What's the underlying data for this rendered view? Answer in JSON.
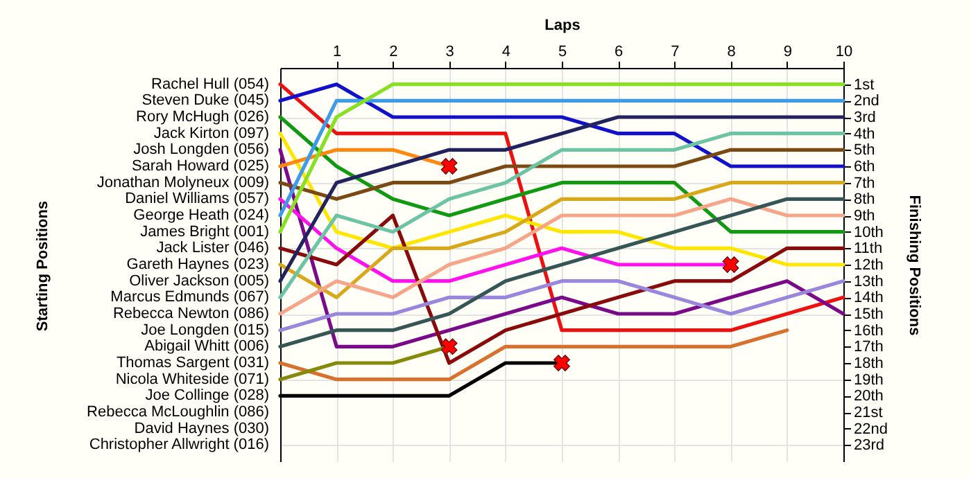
{
  "chart_data": {
    "type": "line",
    "xlabel": "Laps",
    "ylabel": "Finishing Positions",
    "annotations": [
      "Starting Positions",
      "Rebecca McLoughlin (086)",
      "David Haynes (030)",
      "Christopher Allwright (016)"
    ],
    "legend": "left",
    "x": [
      0,
      1,
      2,
      3,
      4,
      5,
      6,
      7,
      8,
      9,
      10
    ],
    "xlim": [
      0,
      10
    ],
    "xticks": [
      1,
      2,
      3,
      4,
      5,
      6,
      7,
      8,
      9,
      10
    ],
    "ylim": [
      24,
      0
    ],
    "yticks": [
      {
        "value": 1,
        "label": "1st"
      },
      {
        "value": 2,
        "label": "2nd"
      },
      {
        "value": 3,
        "label": "3rd"
      },
      {
        "value": 4,
        "label": "4th"
      },
      {
        "value": 5,
        "label": "5th"
      },
      {
        "value": 6,
        "label": "6th"
      },
      {
        "value": 7,
        "label": "7th"
      },
      {
        "value": 8,
        "label": "8th"
      },
      {
        "value": 9,
        "label": "9th"
      },
      {
        "value": 10,
        "label": "10th"
      },
      {
        "value": 11,
        "label": "11th"
      },
      {
        "value": 12,
        "label": "12th"
      },
      {
        "value": 13,
        "label": "13th"
      },
      {
        "value": 14,
        "label": "14th"
      },
      {
        "value": 15,
        "label": "15th"
      },
      {
        "value": 16,
        "label": "16th"
      },
      {
        "value": 17,
        "label": "17th"
      },
      {
        "value": 18,
        "label": "18th"
      },
      {
        "value": 19,
        "label": "19th"
      },
      {
        "value": 20,
        "label": "20th"
      },
      {
        "value": 21,
        "label": "21st"
      },
      {
        "value": 22,
        "label": "22nd"
      },
      {
        "value": 23,
        "label": "23rd"
      }
    ],
    "grid": true,
    "series": [
      {
        "name": "Rachel Hull (054)",
        "color": "#ee1111",
        "values": [
          1,
          4,
          4,
          4,
          4,
          16,
          16,
          16,
          16,
          15,
          14
        ]
      },
      {
        "name": "Steven Duke (045)",
        "color": "#1111cc",
        "values": [
          2,
          1,
          3,
          3,
          3,
          3,
          4,
          4,
          6,
          6,
          6
        ]
      },
      {
        "name": "Rory McHugh (026)",
        "color": "#119911",
        "values": [
          3,
          6,
          8,
          9,
          8,
          7,
          7,
          7,
          10,
          10,
          10
        ]
      },
      {
        "name": "Jack Kirton (097)",
        "color": "#ffe600",
        "values": [
          4,
          10,
          11,
          10,
          9,
          10,
          10,
          11,
          11,
          12,
          12
        ]
      },
      {
        "name": "Josh Longden (056)",
        "color": "#7a0a8a",
        "values": [
          5,
          17,
          17,
          16,
          15,
          14,
          15,
          15,
          14,
          13,
          15
        ]
      },
      {
        "name": "Sarah Howard (025)",
        "color": "#ff8811",
        "values": [
          6,
          5,
          5,
          6,
          null,
          null,
          null,
          null,
          null,
          null,
          null
        ]
      },
      {
        "name": "Jonathan Molyneux (009)",
        "color": "#7b4a14",
        "values": [
          7,
          8,
          7,
          7,
          6,
          6,
          6,
          6,
          5,
          5,
          5
        ]
      },
      {
        "name": "Daniel Williams (057)",
        "color": "#ff11ee",
        "values": [
          8,
          11,
          13,
          13,
          12,
          11,
          12,
          12,
          12,
          null,
          null
        ]
      },
      {
        "name": "George Heath (024)",
        "color": "#3d9be9",
        "values": [
          9,
          2,
          2,
          2,
          2,
          2,
          2,
          2,
          2,
          2,
          2
        ]
      },
      {
        "name": "James Bright (001)",
        "color": "#88e022",
        "values": [
          10,
          3,
          1,
          1,
          1,
          1,
          1,
          1,
          1,
          1,
          1
        ]
      },
      {
        "name": "Jack Lister (046)",
        "color": "#880a0a",
        "values": [
          11,
          12,
          9,
          18,
          16,
          15,
          14,
          13,
          13,
          11,
          11
        ]
      },
      {
        "name": "Gareth Haynes (023)",
        "color": "#d9a81a",
        "values": [
          12,
          14,
          11,
          11,
          10,
          8,
          8,
          8,
          7,
          7,
          7
        ]
      },
      {
        "name": "Oliver Jackson (005)",
        "color": "#22225e",
        "values": [
          13,
          7,
          6,
          5,
          5,
          4,
          3,
          3,
          3,
          3,
          3
        ]
      },
      {
        "name": "Marcus Edmunds (067)",
        "color": "#6cc4a4",
        "values": [
          14,
          9,
          10,
          8,
          7,
          5,
          5,
          5,
          4,
          4,
          4
        ]
      },
      {
        "name": "Rebecca Newton (086)",
        "color": "#f7a588",
        "values": [
          15,
          13,
          14,
          12,
          11,
          9,
          9,
          9,
          8,
          9,
          9
        ]
      },
      {
        "name": "Joe Longden (015)",
        "color": "#9a86dc",
        "values": [
          16,
          15,
          15,
          14,
          14,
          13,
          13,
          14,
          15,
          14,
          13
        ]
      },
      {
        "name": "Abigail Whitt (006)",
        "color": "#365656",
        "values": [
          17,
          16,
          16,
          15,
          13,
          12,
          11,
          10,
          9,
          8,
          8
        ]
      },
      {
        "name": "Thomas Sargent (031)",
        "color": "#d8702e",
        "values": [
          18,
          19,
          19,
          19,
          17,
          17,
          17,
          17,
          17,
          16,
          null
        ]
      },
      {
        "name": "Nicola Whiteside (071)",
        "color": "#858a0a",
        "values": [
          19,
          18,
          18,
          17,
          null,
          null,
          null,
          null,
          null,
          null,
          null
        ]
      },
      {
        "name": "Joe Collinge (028)",
        "color": "#000000",
        "values": [
          20,
          20,
          20,
          20,
          18,
          18,
          null,
          null,
          null,
          null,
          null
        ]
      },
      {
        "type": "scatter",
        "marker": "cross",
        "color": "#ff0000",
        "x": [
          3,
          3,
          5,
          8
        ],
        "values": [
          6,
          17,
          18,
          12
        ]
      }
    ]
  }
}
